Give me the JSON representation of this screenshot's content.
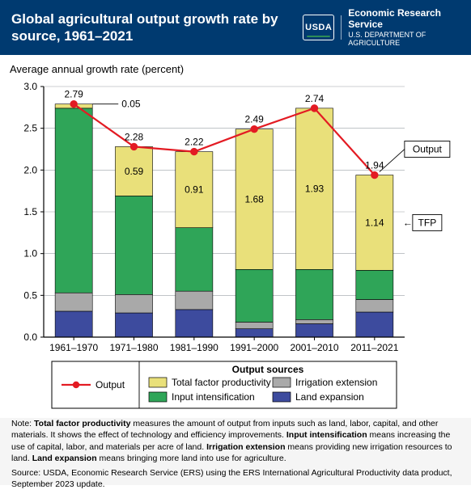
{
  "header": {
    "title": "Global agricultural output growth rate by source, 1961–2021",
    "logo_usda": "USDA",
    "logo_line1": "Economic Research Service",
    "logo_line2": "U.S. DEPARTMENT OF AGRICULTURE"
  },
  "chart": {
    "type": "stacked-bar-with-line",
    "subtitle": "Average annual growth rate (percent)",
    "categories": [
      "1961–1970",
      "1971–1980",
      "1981–1990",
      "1991–2000",
      "2001–2010",
      "2011–2021"
    ],
    "series": [
      {
        "key": "land_expansion",
        "label": "Land expansion",
        "color": "#3d4b9e",
        "values": [
          0.31,
          0.29,
          0.33,
          0.1,
          0.16,
          0.3
        ]
      },
      {
        "key": "irrigation_extension",
        "label": "Irrigation extension",
        "color": "#a9a9a9",
        "values": [
          0.22,
          0.22,
          0.22,
          0.08,
          0.05,
          0.15
        ]
      },
      {
        "key": "input_intensification",
        "label": "Input intensification",
        "color": "#2fa558",
        "values": [
          2.21,
          1.18,
          0.76,
          0.63,
          0.6,
          0.35
        ]
      },
      {
        "key": "tfp",
        "label": "Total factor productivity",
        "color": "#e9e07a",
        "values": [
          0.05,
          0.59,
          0.91,
          1.68,
          1.93,
          1.14
        ]
      }
    ],
    "line": {
      "key": "output",
      "label": "Output",
      "color": "#e31b23",
      "marker_color": "#e31b23",
      "values": [
        2.79,
        2.28,
        2.22,
        2.49,
        2.74,
        1.94
      ]
    },
    "totals_labels": [
      "2.79",
      "2.28",
      "2.22",
      "2.49",
      "2.74",
      "1.94"
    ],
    "tfp_in_bar_labels": [
      "0.05",
      "0.59",
      "0.91",
      "1.68",
      "1.93",
      "1.14"
    ],
    "callouts": {
      "output": "Output",
      "tfp": "TFP"
    },
    "y": {
      "min": 0.0,
      "max": 3.0,
      "step": 0.5,
      "ticks": [
        "0.0",
        "0.5",
        "1.0",
        "1.5",
        "2.0",
        "2.5",
        "3.0"
      ]
    },
    "bar_width": 0.62,
    "axis_color": "#000000",
    "grid_color": "#9aa0a6",
    "label_fontsize": 12,
    "legend_title": "Output sources"
  },
  "note_html": "Note: <b>Total factor productivity</b> measures the amount of output from inputs such as land, labor, capital, and other materials. It shows the effect of technology and efficiency improvements. <b>Input intensification</b> means increasing the use of capital, labor, and materials per acre of land. <b>Irrigation extension</b> means providing new irrigation resources to land. <b>Land expansion</b> means bringing more land into use for agriculture.",
  "source": "Source: USDA, Economic Research Service (ERS) using the ERS International Agricultural Productivity data product, September 2023 update."
}
